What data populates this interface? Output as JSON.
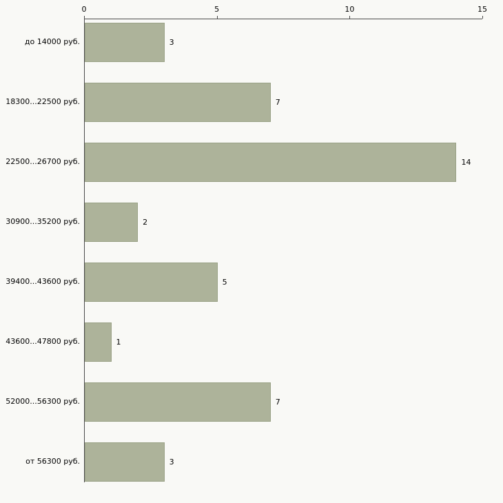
{
  "chart_data": {
    "type": "bar",
    "orientation": "horizontal",
    "title": "",
    "xlabel": "",
    "ylabel": "",
    "categories": [
      "до 14000 руб.",
      "18300...22500 руб.",
      "22500...26700 руб.",
      "30900...35200 руб.",
      "39400...43600 руб.",
      "43600...47800 руб.",
      "52000...56300 руб.",
      "от 56300 руб."
    ],
    "values": [
      3,
      7,
      14,
      2,
      5,
      1,
      7,
      3
    ],
    "xlim": [
      0,
      15
    ],
    "x_ticks": [
      0,
      5,
      10,
      15
    ],
    "x_axis_position": "top",
    "grid": false,
    "legend": false,
    "bar_color": "#adb39a",
    "bar_border_color": "#99a185",
    "background_color": "#f9f9f6",
    "axis_color": "#4a4a4a"
  }
}
